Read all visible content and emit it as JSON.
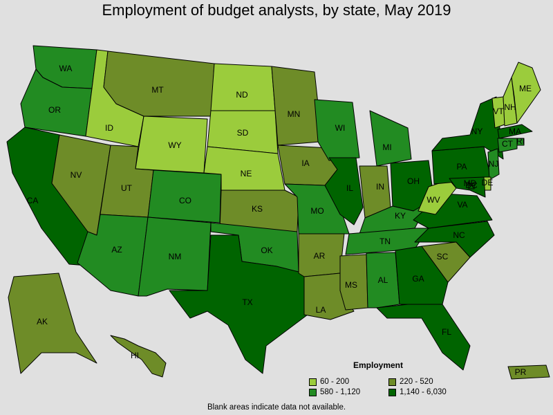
{
  "title": "Employment of budget analysts, by state, May 2019",
  "colors": {
    "c1": "#9bcc3c",
    "c2": "#6e8c28",
    "c3": "#228b22",
    "c4": "#006400",
    "background": "#e0e0e0"
  },
  "legend": {
    "title": "Employment",
    "items": [
      {
        "label": "60 - 200",
        "color": "#9bcc3c"
      },
      {
        "label": "220 - 520",
        "color": "#6e8c28"
      },
      {
        "label": "580 - 1,120",
        "color": "#228b22"
      },
      {
        "label": "1,140 - 6,030",
        "color": "#006400"
      }
    ]
  },
  "footnote": "Blank areas indicate data not available.",
  "states": [
    {
      "abbr": "WA",
      "cls": 3
    },
    {
      "abbr": "OR",
      "cls": 3
    },
    {
      "abbr": "CA",
      "cls": 4
    },
    {
      "abbr": "ID",
      "cls": 1
    },
    {
      "abbr": "NV",
      "cls": 2
    },
    {
      "abbr": "MT",
      "cls": 2
    },
    {
      "abbr": "WY",
      "cls": 1
    },
    {
      "abbr": "UT",
      "cls": 2
    },
    {
      "abbr": "AZ",
      "cls": 3
    },
    {
      "abbr": "CO",
      "cls": 3
    },
    {
      "abbr": "NM",
      "cls": 3
    },
    {
      "abbr": "ND",
      "cls": 1
    },
    {
      "abbr": "SD",
      "cls": 1
    },
    {
      "abbr": "NE",
      "cls": 1
    },
    {
      "abbr": "KS",
      "cls": 2
    },
    {
      "abbr": "OK",
      "cls": 3
    },
    {
      "abbr": "TX",
      "cls": 4
    },
    {
      "abbr": "MN",
      "cls": 2
    },
    {
      "abbr": "IA",
      "cls": 2
    },
    {
      "abbr": "MO",
      "cls": 3
    },
    {
      "abbr": "AR",
      "cls": 2
    },
    {
      "abbr": "LA",
      "cls": 2
    },
    {
      "abbr": "WI",
      "cls": 3
    },
    {
      "abbr": "IL",
      "cls": 4
    },
    {
      "abbr": "MI",
      "cls": 3
    },
    {
      "abbr": "IN",
      "cls": 2
    },
    {
      "abbr": "OH",
      "cls": 4
    },
    {
      "abbr": "KY",
      "cls": 3
    },
    {
      "abbr": "TN",
      "cls": 3
    },
    {
      "abbr": "MS",
      "cls": 2
    },
    {
      "abbr": "AL",
      "cls": 3
    },
    {
      "abbr": "GA",
      "cls": 4
    },
    {
      "abbr": "FL",
      "cls": 4
    },
    {
      "abbr": "SC",
      "cls": 2
    },
    {
      "abbr": "NC",
      "cls": 4
    },
    {
      "abbr": "VA",
      "cls": 4
    },
    {
      "abbr": "WV",
      "cls": 1
    },
    {
      "abbr": "PA",
      "cls": 4
    },
    {
      "abbr": "NY",
      "cls": 4
    },
    {
      "abbr": "VT",
      "cls": 1
    },
    {
      "abbr": "NH",
      "cls": 1
    },
    {
      "abbr": "ME",
      "cls": 1
    },
    {
      "abbr": "MA",
      "cls": 4
    },
    {
      "abbr": "RI",
      "cls": 3
    },
    {
      "abbr": "CT",
      "cls": 3
    },
    {
      "abbr": "NJ",
      "cls": 3
    },
    {
      "abbr": "DE",
      "cls": 1
    },
    {
      "abbr": "MD",
      "cls": 4
    },
    {
      "abbr": "DC",
      "cls": 4
    },
    {
      "abbr": "AK",
      "cls": 2
    },
    {
      "abbr": "HI",
      "cls": 2
    },
    {
      "abbr": "PR",
      "cls": 2
    }
  ]
}
